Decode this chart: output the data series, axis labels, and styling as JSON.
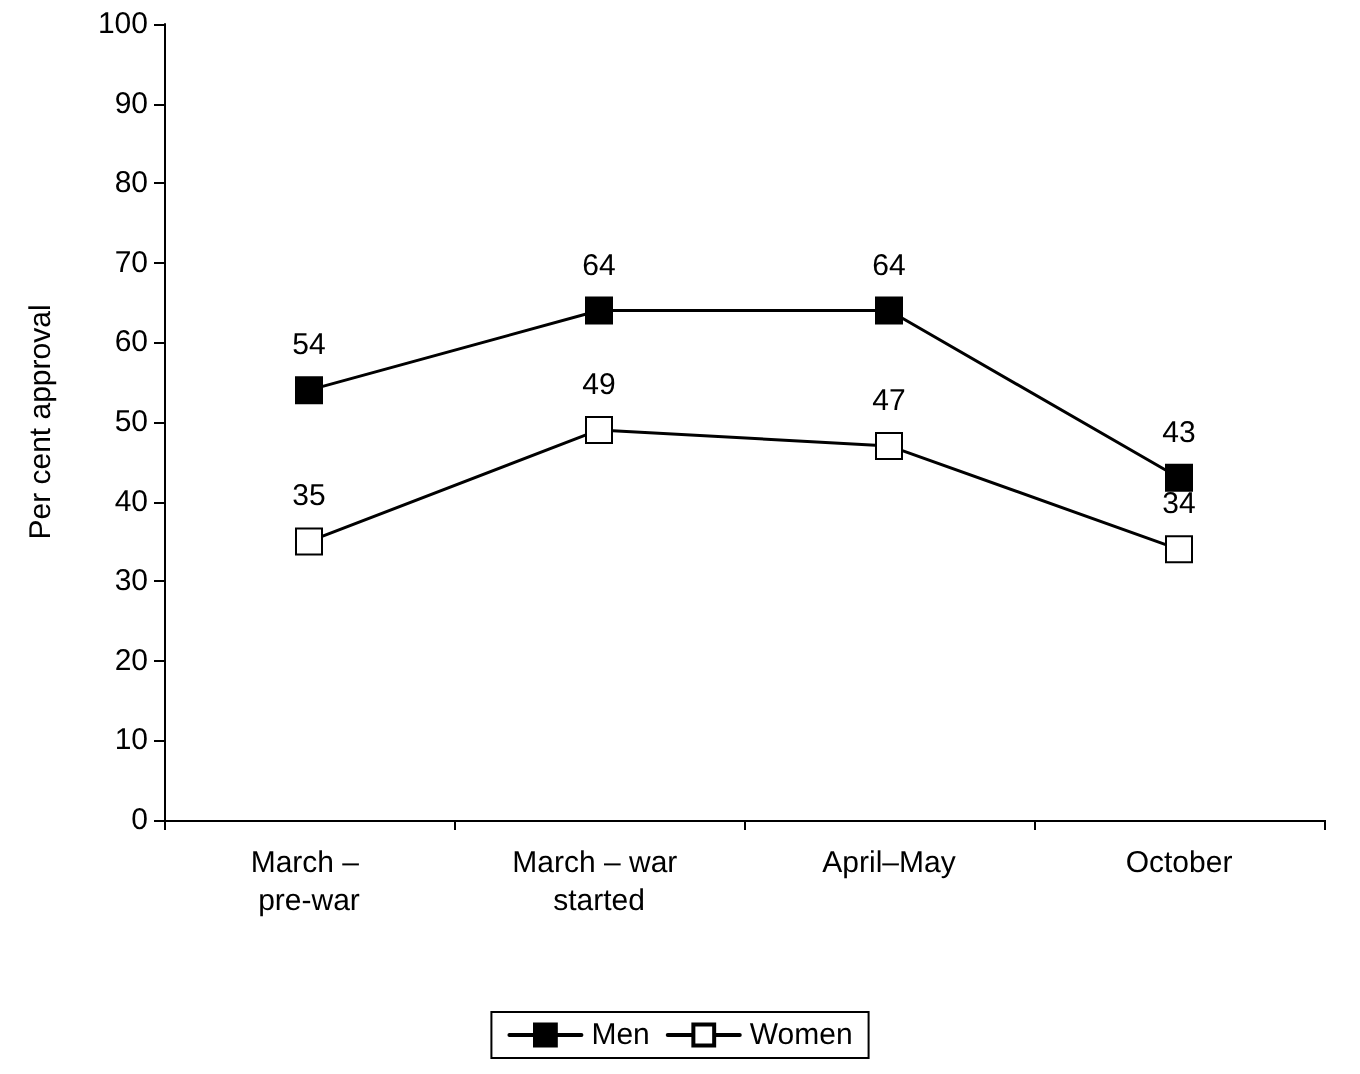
{
  "chart_data": {
    "type": "line",
    "ylabel": "Per cent approval",
    "categories": [
      "March – pre-war",
      "March – war started",
      "April–May",
      "October"
    ],
    "series": [
      {
        "name": "Men",
        "color": "#000000",
        "values": [
          54,
          64,
          64,
          43
        ]
      },
      {
        "name": "Women",
        "color": "#ffffff",
        "values": [
          35,
          49,
          47,
          34
        ]
      }
    ],
    "ylim": [
      0,
      100
    ],
    "yticks": [
      0,
      10,
      20,
      30,
      40,
      50,
      60,
      70,
      80,
      90,
      100
    ],
    "grid": false,
    "legend": "bottom",
    "marker": "square",
    "line_style": "solid",
    "data_labels": true
  }
}
